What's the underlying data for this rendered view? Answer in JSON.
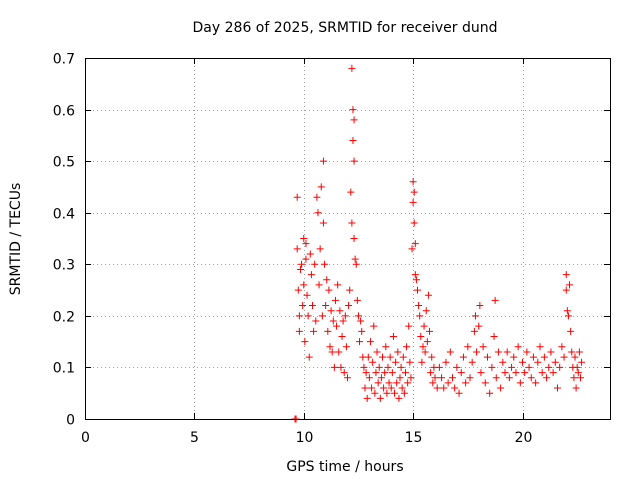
{
  "chart_data": {
    "type": "scatter",
    "title": "Day 286 of 2025, SRMTID for receiver dund",
    "xlabel": "GPS time / hours",
    "ylabel": "SRMTID / TECUs",
    "xlim": [
      0,
      24
    ],
    "ylim": [
      0,
      0.7
    ],
    "xticks": [
      0,
      5,
      10,
      15,
      20
    ],
    "yticks": [
      0,
      0.1,
      0.2,
      0.3,
      0.4,
      0.5,
      0.6,
      0.7
    ],
    "xtick_labels": [
      "0",
      "5",
      "10",
      "15",
      "20"
    ],
    "ytick_labels": [
      "0",
      "0.1",
      "0.2",
      "0.3",
      "0.4",
      "0.5",
      "0.6",
      "0.7"
    ],
    "grid": true,
    "marker": "+",
    "color": "#ff0000",
    "series": [
      {
        "values": [
          [
            9.6,
            0.0
          ],
          [
            9.65,
            0.0
          ],
          [
            9.7,
            0.43
          ],
          [
            9.7,
            0.33
          ],
          [
            9.75,
            0.25
          ],
          [
            9.8,
            0.2
          ],
          [
            9.8,
            0.17
          ],
          [
            9.85,
            0.29
          ],
          [
            9.9,
            0.3
          ],
          [
            9.95,
            0.22
          ],
          [
            10.0,
            0.35
          ],
          [
            10.0,
            0.26
          ],
          [
            10.05,
            0.15
          ],
          [
            10.1,
            0.31
          ],
          [
            10.1,
            0.34
          ],
          [
            10.15,
            0.24
          ],
          [
            10.2,
            0.2
          ],
          [
            10.25,
            0.12
          ],
          [
            10.3,
            0.32
          ],
          [
            10.35,
            0.28
          ],
          [
            10.4,
            0.22
          ],
          [
            10.45,
            0.17
          ],
          [
            10.5,
            0.3
          ],
          [
            10.55,
            0.19
          ],
          [
            10.6,
            0.43
          ],
          [
            10.65,
            0.4
          ],
          [
            10.7,
            0.26
          ],
          [
            10.75,
            0.33
          ],
          [
            10.8,
            0.45
          ],
          [
            10.85,
            0.2
          ],
          [
            10.9,
            0.5
          ],
          [
            10.9,
            0.38
          ],
          [
            10.95,
            0.3
          ],
          [
            11.0,
            0.22
          ],
          [
            11.05,
            0.27
          ],
          [
            11.1,
            0.17
          ],
          [
            11.15,
            0.25
          ],
          [
            11.2,
            0.14
          ],
          [
            11.25,
            0.21
          ],
          [
            11.3,
            0.13
          ],
          [
            11.35,
            0.19
          ],
          [
            11.4,
            0.1
          ],
          [
            11.45,
            0.23
          ],
          [
            11.5,
            0.18
          ],
          [
            11.55,
            0.26
          ],
          [
            11.6,
            0.13
          ],
          [
            11.65,
            0.21
          ],
          [
            11.7,
            0.1
          ],
          [
            11.75,
            0.16
          ],
          [
            11.8,
            0.19
          ],
          [
            11.85,
            0.09
          ],
          [
            11.9,
            0.2
          ],
          [
            11.95,
            0.14
          ],
          [
            12.0,
            0.08
          ],
          [
            12.05,
            0.22
          ],
          [
            12.1,
            0.25
          ],
          [
            12.15,
            0.44
          ],
          [
            12.2,
            0.38
          ],
          [
            12.2,
            0.68
          ],
          [
            12.25,
            0.6
          ],
          [
            12.25,
            0.54
          ],
          [
            12.3,
            0.58
          ],
          [
            12.3,
            0.5
          ],
          [
            12.3,
            0.35
          ],
          [
            12.35,
            0.31
          ],
          [
            12.4,
            0.3
          ],
          [
            12.45,
            0.23
          ],
          [
            12.5,
            0.2
          ],
          [
            12.55,
            0.15
          ],
          [
            12.6,
            0.19
          ],
          [
            12.65,
            0.17
          ],
          [
            12.7,
            0.12
          ],
          [
            12.75,
            0.1
          ],
          [
            12.8,
            0.06
          ],
          [
            12.85,
            0.09
          ],
          [
            12.9,
            0.04
          ],
          [
            12.95,
            0.12
          ],
          [
            13.0,
            0.08
          ],
          [
            13.05,
            0.15
          ],
          [
            13.1,
            0.06
          ],
          [
            13.15,
            0.11
          ],
          [
            13.2,
            0.18
          ],
          [
            13.25,
            0.05
          ],
          [
            13.3,
            0.09
          ],
          [
            13.35,
            0.13
          ],
          [
            13.4,
            0.07
          ],
          [
            13.45,
            0.1
          ],
          [
            13.5,
            0.04
          ],
          [
            13.55,
            0.08
          ],
          [
            13.6,
            0.12
          ],
          [
            13.65,
            0.06
          ],
          [
            13.7,
            0.09
          ],
          [
            13.75,
            0.14
          ],
          [
            13.8,
            0.05
          ],
          [
            13.85,
            0.1
          ],
          [
            13.9,
            0.07
          ],
          [
            13.95,
            0.12
          ],
          [
            14.0,
            0.06
          ],
          [
            14.05,
            0.09
          ],
          [
            14.1,
            0.16
          ],
          [
            14.15,
            0.05
          ],
          [
            14.2,
            0.11
          ],
          [
            14.25,
            0.07
          ],
          [
            14.3,
            0.13
          ],
          [
            14.35,
            0.04
          ],
          [
            14.4,
            0.08
          ],
          [
            14.45,
            0.1
          ],
          [
            14.5,
            0.06
          ],
          [
            14.55,
            0.12
          ],
          [
            14.6,
            0.05
          ],
          [
            14.65,
            0.09
          ],
          [
            14.7,
            0.14
          ],
          [
            14.75,
            0.07
          ],
          [
            14.8,
            0.18
          ],
          [
            14.85,
            0.11
          ],
          [
            14.9,
            0.08
          ],
          [
            14.95,
            0.33
          ],
          [
            15.0,
            0.46
          ],
          [
            15.0,
            0.42
          ],
          [
            15.05,
            0.44
          ],
          [
            15.05,
            0.38
          ],
          [
            15.1,
            0.34
          ],
          [
            15.1,
            0.28
          ],
          [
            15.15,
            0.27
          ],
          [
            15.2,
            0.25
          ],
          [
            15.25,
            0.22
          ],
          [
            15.3,
            0.2
          ],
          [
            15.35,
            0.16
          ],
          [
            15.4,
            0.11
          ],
          [
            15.45,
            0.14
          ],
          [
            15.5,
            0.18
          ],
          [
            15.55,
            0.13
          ],
          [
            15.6,
            0.21
          ],
          [
            15.65,
            0.15
          ],
          [
            15.7,
            0.24
          ],
          [
            15.75,
            0.17
          ],
          [
            15.8,
            0.09
          ],
          [
            15.85,
            0.12
          ],
          [
            15.9,
            0.07
          ],
          [
            15.95,
            0.1
          ],
          [
            16.0,
            0.08
          ],
          [
            16.1,
            0.06
          ],
          [
            16.2,
            0.1
          ],
          [
            16.3,
            0.08
          ],
          [
            16.4,
            0.06
          ],
          [
            16.5,
            0.11
          ],
          [
            16.6,
            0.07
          ],
          [
            16.7,
            0.13
          ],
          [
            16.8,
            0.08
          ],
          [
            16.9,
            0.06
          ],
          [
            17.0,
            0.1
          ],
          [
            17.1,
            0.05
          ],
          [
            17.2,
            0.09
          ],
          [
            17.3,
            0.12
          ],
          [
            17.4,
            0.07
          ],
          [
            17.5,
            0.14
          ],
          [
            17.6,
            0.08
          ],
          [
            17.7,
            0.11
          ],
          [
            17.8,
            0.17
          ],
          [
            17.85,
            0.2
          ],
          [
            17.9,
            0.13
          ],
          [
            18.0,
            0.18
          ],
          [
            18.05,
            0.22
          ],
          [
            18.1,
            0.09
          ],
          [
            18.2,
            0.14
          ],
          [
            18.3,
            0.07
          ],
          [
            18.4,
            0.12
          ],
          [
            18.5,
            0.05
          ],
          [
            18.6,
            0.1
          ],
          [
            18.7,
            0.16
          ],
          [
            18.75,
            0.23
          ],
          [
            18.8,
            0.08
          ],
          [
            18.9,
            0.13
          ],
          [
            19.0,
            0.06
          ],
          [
            19.1,
            0.11
          ],
          [
            19.2,
            0.09
          ],
          [
            19.3,
            0.13
          ],
          [
            19.4,
            0.08
          ],
          [
            19.5,
            0.1
          ],
          [
            19.6,
            0.12
          ],
          [
            19.7,
            0.09
          ],
          [
            19.8,
            0.14
          ],
          [
            19.9,
            0.07
          ],
          [
            20.0,
            0.11
          ],
          [
            20.1,
            0.09
          ],
          [
            20.2,
            0.13
          ],
          [
            20.3,
            0.1
          ],
          [
            20.4,
            0.08
          ],
          [
            20.5,
            0.12
          ],
          [
            20.6,
            0.07
          ],
          [
            20.7,
            0.11
          ],
          [
            20.8,
            0.14
          ],
          [
            20.9,
            0.09
          ],
          [
            21.0,
            0.12
          ],
          [
            21.1,
            0.08
          ],
          [
            21.2,
            0.1
          ],
          [
            21.3,
            0.13
          ],
          [
            21.4,
            0.09
          ],
          [
            21.5,
            0.11
          ],
          [
            21.6,
            0.06
          ],
          [
            21.7,
            0.1
          ],
          [
            21.8,
            0.14
          ],
          [
            21.9,
            0.12
          ],
          [
            22.0,
            0.28
          ],
          [
            22.0,
            0.25
          ],
          [
            22.05,
            0.21
          ],
          [
            22.1,
            0.2
          ],
          [
            22.15,
            0.26
          ],
          [
            22.2,
            0.17
          ],
          [
            22.25,
            0.13
          ],
          [
            22.3,
            0.1
          ],
          [
            22.35,
            0.08
          ],
          [
            22.4,
            0.12
          ],
          [
            22.45,
            0.06
          ],
          [
            22.5,
            0.1
          ],
          [
            22.55,
            0.09
          ],
          [
            22.6,
            0.13
          ],
          [
            22.65,
            0.08
          ],
          [
            22.7,
            0.11
          ]
        ]
      }
    ]
  }
}
